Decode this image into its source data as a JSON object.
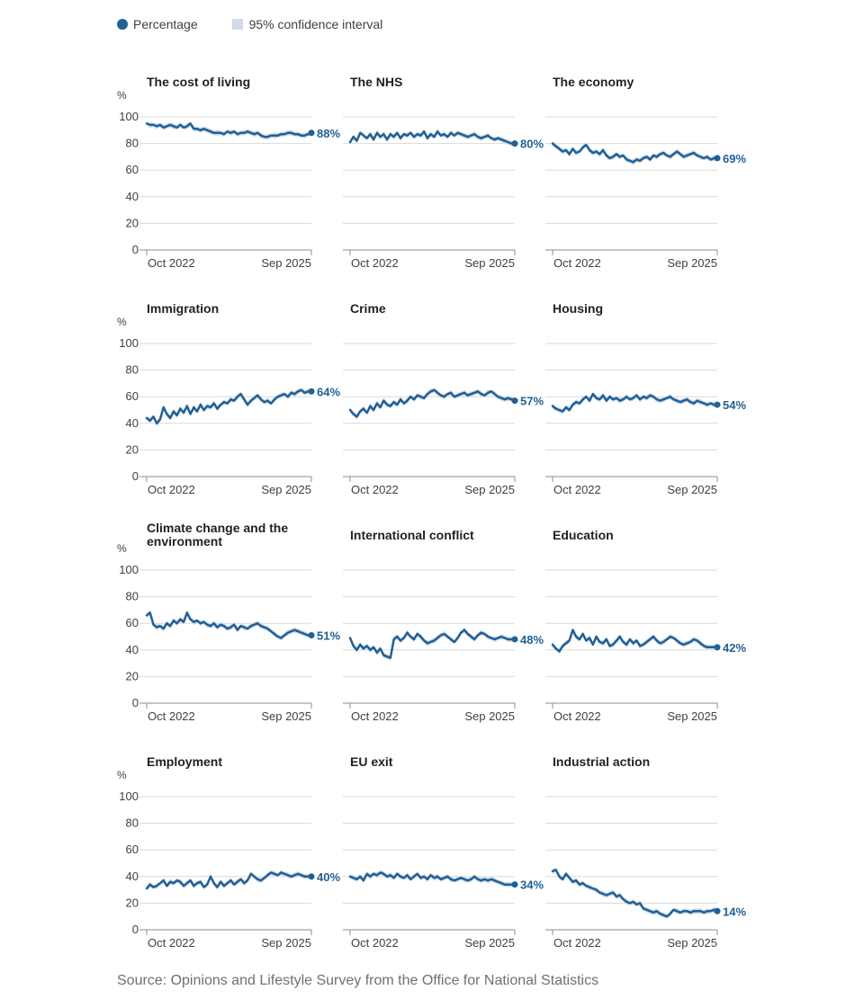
{
  "legend": {
    "percentage": "Percentage",
    "ci": "95% confidence interval"
  },
  "colors": {
    "line": "#206095",
    "ci": "#cfdbe9",
    "grid": "#d9d9d9",
    "axis": "#414042",
    "text": "#222222",
    "muted": "#707071"
  },
  "source": "Source: Opinions and Lifestyle Survey from the Office for National Statistics",
  "chart_data": [
    {
      "type": "line",
      "title": "The cost of living",
      "ylabel": "%",
      "ylim": [
        0,
        100
      ],
      "yticks": [
        0,
        20,
        40,
        60,
        80,
        100
      ],
      "xticks": [
        "Oct 2022",
        "Sep 2025"
      ],
      "final_label": "88%",
      "series": [
        {
          "values": [
            95,
            94,
            94,
            93,
            94,
            92,
            93,
            94,
            93,
            92,
            94,
            92,
            93,
            95,
            91,
            91,
            90,
            91,
            90,
            89,
            88,
            88,
            88,
            87,
            89,
            88,
            89,
            87,
            88,
            88,
            89,
            88,
            87,
            88,
            86,
            85,
            85,
            86,
            86,
            86,
            87,
            87,
            88,
            88,
            87,
            87,
            86,
            86,
            87,
            88
          ]
        }
      ]
    },
    {
      "type": "line",
      "title": "The NHS",
      "ylabel": "",
      "ylim": [
        0,
        100
      ],
      "yticks": [
        0,
        20,
        40,
        60,
        80,
        100
      ],
      "xticks": [
        "Oct 2022",
        "Sep 2025"
      ],
      "final_label": "80%",
      "series": [
        {
          "values": [
            81,
            85,
            82,
            88,
            86,
            84,
            87,
            83,
            88,
            85,
            87,
            83,
            87,
            85,
            88,
            84,
            87,
            86,
            88,
            85,
            87,
            86,
            89,
            84,
            87,
            85,
            89,
            86,
            87,
            85,
            88,
            86,
            88,
            87,
            86,
            85,
            86,
            87,
            85,
            84,
            85,
            86,
            84,
            83,
            84,
            83,
            82,
            81,
            80,
            80
          ]
        }
      ]
    },
    {
      "type": "line",
      "title": "The economy",
      "ylabel": "",
      "ylim": [
        0,
        100
      ],
      "yticks": [
        0,
        20,
        40,
        60,
        80,
        100
      ],
      "xticks": [
        "Oct 2022",
        "Sep 2025"
      ],
      "final_label": "69%",
      "series": [
        {
          "values": [
            80,
            78,
            76,
            74,
            75,
            72,
            76,
            73,
            74,
            77,
            79,
            75,
            73,
            74,
            72,
            75,
            71,
            69,
            70,
            72,
            70,
            71,
            68,
            67,
            66,
            68,
            67,
            69,
            70,
            68,
            71,
            70,
            72,
            73,
            71,
            70,
            72,
            74,
            72,
            70,
            71,
            72,
            73,
            71,
            70,
            69,
            70,
            68,
            69,
            69
          ]
        }
      ]
    },
    {
      "type": "line",
      "title": "Immigration",
      "ylabel": "%",
      "ylim": [
        0,
        100
      ],
      "yticks": [
        0,
        20,
        40,
        60,
        80,
        100
      ],
      "xticks": [
        "Oct 2022",
        "Sep 2025"
      ],
      "final_label": "64%",
      "series": [
        {
          "values": [
            44,
            42,
            45,
            40,
            43,
            52,
            47,
            44,
            49,
            46,
            51,
            48,
            53,
            47,
            52,
            49,
            54,
            50,
            53,
            52,
            55,
            51,
            54,
            56,
            55,
            58,
            57,
            60,
            62,
            58,
            54,
            57,
            59,
            61,
            58,
            56,
            57,
            55,
            58,
            60,
            61,
            62,
            60,
            63,
            62,
            64,
            65,
            63,
            64,
            64
          ]
        }
      ]
    },
    {
      "type": "line",
      "title": "Crime",
      "ylabel": "",
      "ylim": [
        0,
        100
      ],
      "yticks": [
        0,
        20,
        40,
        60,
        80,
        100
      ],
      "xticks": [
        "Oct 2022",
        "Sep 2025"
      ],
      "final_label": "57%",
      "series": [
        {
          "values": [
            50,
            47,
            45,
            49,
            51,
            48,
            53,
            50,
            55,
            52,
            57,
            54,
            53,
            56,
            54,
            58,
            55,
            57,
            60,
            58,
            61,
            60,
            59,
            62,
            64,
            65,
            63,
            61,
            60,
            62,
            63,
            60,
            61,
            62,
            63,
            61,
            62,
            63,
            64,
            62,
            61,
            63,
            64,
            62,
            60,
            59,
            58,
            59,
            58,
            57
          ]
        }
      ]
    },
    {
      "type": "line",
      "title": "Housing",
      "ylabel": "",
      "ylim": [
        0,
        100
      ],
      "yticks": [
        0,
        20,
        40,
        60,
        80,
        100
      ],
      "xticks": [
        "Oct 2022",
        "Sep 2025"
      ],
      "final_label": "54%",
      "series": [
        {
          "values": [
            53,
            51,
            50,
            49,
            52,
            50,
            54,
            56,
            55,
            58,
            60,
            57,
            62,
            59,
            58,
            61,
            57,
            60,
            58,
            59,
            57,
            58,
            60,
            58,
            59,
            61,
            58,
            60,
            59,
            61,
            60,
            58,
            57,
            58,
            59,
            60,
            58,
            57,
            56,
            57,
            58,
            56,
            55,
            57,
            56,
            55,
            54,
            55,
            54,
            54
          ]
        }
      ]
    },
    {
      "type": "line",
      "title": "Climate change and the environment",
      "ylabel": "%",
      "ylim": [
        0,
        100
      ],
      "yticks": [
        0,
        20,
        40,
        60,
        80,
        100
      ],
      "xticks": [
        "Oct 2022",
        "Sep 2025"
      ],
      "final_label": "51%",
      "series": [
        {
          "values": [
            66,
            68,
            59,
            57,
            58,
            56,
            60,
            58,
            62,
            60,
            63,
            61,
            68,
            63,
            61,
            62,
            60,
            61,
            59,
            58,
            60,
            57,
            59,
            58,
            56,
            57,
            59,
            55,
            58,
            57,
            56,
            58,
            59,
            60,
            58,
            57,
            56,
            54,
            52,
            50,
            49,
            51,
            53,
            54,
            55,
            54,
            53,
            52,
            51,
            51
          ]
        }
      ]
    },
    {
      "type": "line",
      "title": "International conflict",
      "ylabel": "",
      "ylim": [
        0,
        100
      ],
      "yticks": [
        0,
        20,
        40,
        60,
        80,
        100
      ],
      "xticks": [
        "Oct 2022",
        "Sep 2025"
      ],
      "final_label": "48%",
      "series": [
        {
          "values": [
            49,
            43,
            40,
            44,
            41,
            43,
            40,
            42,
            38,
            41,
            36,
            35,
            34,
            48,
            50,
            47,
            49,
            53,
            50,
            48,
            52,
            50,
            47,
            45,
            46,
            47,
            49,
            51,
            52,
            50,
            48,
            46,
            49,
            53,
            55,
            52,
            50,
            48,
            51,
            53,
            52,
            50,
            49,
            48,
            49,
            50,
            49,
            48,
            48,
            48
          ]
        }
      ]
    },
    {
      "type": "line",
      "title": "Education",
      "ylabel": "",
      "ylim": [
        0,
        100
      ],
      "yticks": [
        0,
        20,
        40,
        60,
        80,
        100
      ],
      "xticks": [
        "Oct 2022",
        "Sep 2025"
      ],
      "final_label": "42%",
      "series": [
        {
          "values": [
            44,
            41,
            39,
            43,
            45,
            47,
            55,
            50,
            48,
            52,
            47,
            49,
            44,
            50,
            46,
            45,
            48,
            43,
            44,
            47,
            50,
            46,
            44,
            48,
            45,
            47,
            43,
            44,
            46,
            48,
            50,
            47,
            45,
            46,
            48,
            50,
            49,
            47,
            45,
            44,
            45,
            46,
            48,
            47,
            45,
            43,
            42,
            42,
            42,
            42
          ]
        }
      ]
    },
    {
      "type": "line",
      "title": "Employment",
      "ylabel": "%",
      "ylim": [
        0,
        100
      ],
      "yticks": [
        0,
        20,
        40,
        60,
        80,
        100
      ],
      "xticks": [
        "Oct 2022",
        "Sep 2025"
      ],
      "final_label": "40%",
      "series": [
        {
          "values": [
            31,
            34,
            32,
            33,
            35,
            37,
            33,
            36,
            35,
            37,
            36,
            33,
            35,
            37,
            33,
            35,
            36,
            32,
            34,
            40,
            35,
            32,
            36,
            33,
            35,
            37,
            34,
            36,
            38,
            35,
            37,
            42,
            40,
            38,
            37,
            39,
            41,
            43,
            42,
            41,
            43,
            42,
            41,
            40,
            41,
            42,
            41,
            40,
            40,
            40
          ]
        }
      ]
    },
    {
      "type": "line",
      "title": "EU exit",
      "ylabel": "",
      "ylim": [
        0,
        100
      ],
      "yticks": [
        0,
        20,
        40,
        60,
        80,
        100
      ],
      "xticks": [
        "Oct 2022",
        "Sep 2025"
      ],
      "final_label": "34%",
      "series": [
        {
          "values": [
            40,
            39,
            38,
            40,
            37,
            42,
            40,
            42,
            41,
            43,
            42,
            40,
            41,
            39,
            42,
            40,
            39,
            41,
            38,
            40,
            42,
            39,
            40,
            38,
            41,
            39,
            40,
            38,
            39,
            40,
            38,
            37,
            38,
            39,
            38,
            37,
            38,
            40,
            38,
            37,
            38,
            37,
            38,
            37,
            36,
            35,
            34,
            34,
            34,
            34
          ]
        }
      ]
    },
    {
      "type": "line",
      "title": "Industrial action",
      "ylabel": "",
      "ylim": [
        0,
        100
      ],
      "yticks": [
        0,
        20,
        40,
        60,
        80,
        100
      ],
      "xticks": [
        "Oct 2022",
        "Sep 2025"
      ],
      "final_label": "14%",
      "series": [
        {
          "values": [
            44,
            45,
            40,
            38,
            42,
            39,
            36,
            37,
            34,
            35,
            33,
            32,
            31,
            30,
            28,
            27,
            26,
            27,
            28,
            25,
            26,
            23,
            21,
            20,
            21,
            19,
            20,
            16,
            15,
            14,
            13,
            14,
            12,
            11,
            10,
            12,
            15,
            14,
            13,
            14,
            14,
            13,
            14,
            14,
            14,
            13,
            14,
            14,
            15,
            14
          ]
        }
      ]
    }
  ]
}
